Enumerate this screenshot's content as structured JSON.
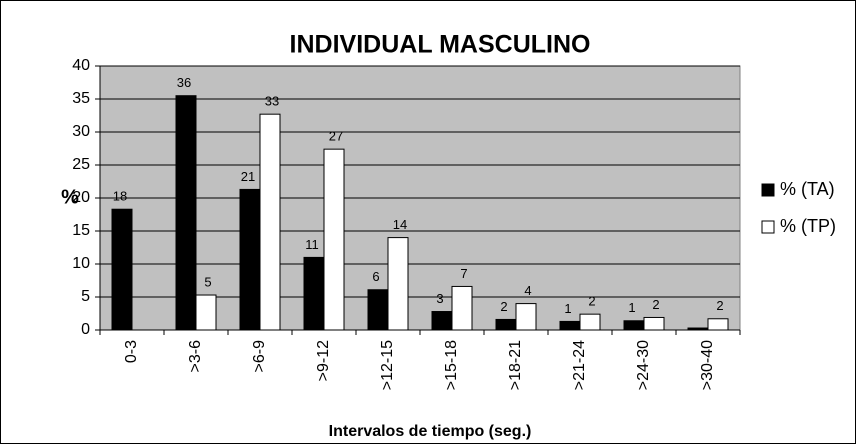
{
  "chart_data": {
    "type": "bar",
    "title": "INDIVIDUAL MASCULINO",
    "x_label": "Intervalos de tiempo (seg.)",
    "y_label": "%",
    "categories": [
      "0-3",
      ">3-6",
      ">6-9",
      ">9-12",
      ">12-15",
      ">15-18",
      ">18-21",
      ">21-24",
      ">24-30",
      ">30-40"
    ],
    "series": [
      {
        "name": "% (TA)",
        "color": "#000000",
        "values": [
          18.3,
          35.5,
          21.3,
          11,
          6.1,
          2.8,
          1.6,
          1.3,
          1.4,
          0.3
        ],
        "value_labels": [
          "18",
          "36",
          "21",
          "11",
          "6",
          "3",
          "2",
          "1",
          "1",
          null
        ]
      },
      {
        "name": "% (TP)",
        "color": "#ffffff",
        "values": [
          0,
          5.3,
          32.7,
          27.4,
          14,
          6.6,
          4,
          2.4,
          1.9,
          1.7
        ],
        "value_labels": [
          null,
          "5",
          "33",
          "27",
          "14",
          "7",
          "4",
          "2",
          "2",
          "2"
        ]
      }
    ],
    "ylim": [
      0,
      40
    ],
    "yticks": [
      0,
      5,
      10,
      15,
      20,
      25,
      30,
      35,
      40
    ],
    "grid": true,
    "legend": "right"
  }
}
